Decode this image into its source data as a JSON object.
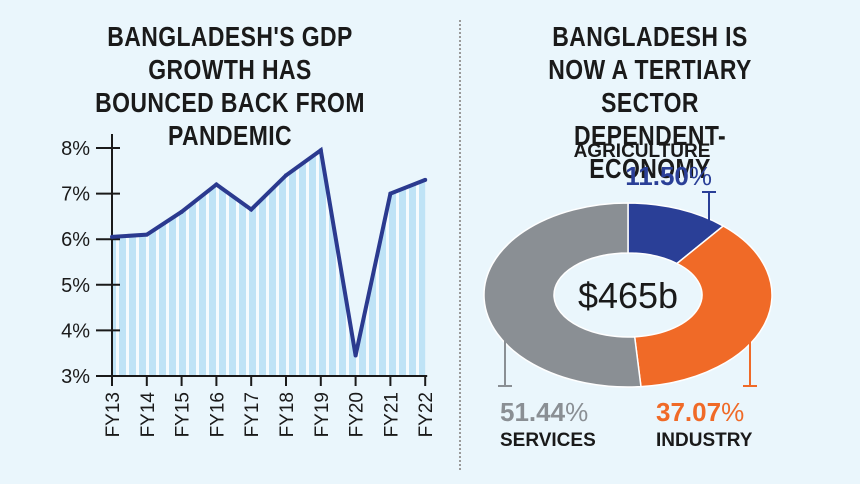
{
  "left_title": "BANGLADESH'S GDP GROWTH HAS BOUNCED BACK FROM PANDEMIC",
  "right_title": "BANGLADESH IS NOW A TERTIARY SECTOR DEPENDENT-ECONOMY",
  "chart_data": [
    {
      "type": "area",
      "title": "BANGLADESH'S GDP GROWTH HAS BOUNCED BACK FROM PANDEMIC",
      "categories": [
        "FY13",
        "FY14",
        "FY15",
        "FY16",
        "FY17",
        "FY18",
        "FY19",
        "FY20",
        "FY21",
        "FY22"
      ],
      "values": [
        6.05,
        6.1,
        6.6,
        7.2,
        6.65,
        7.4,
        7.95,
        3.45,
        7.0,
        7.3
      ],
      "yticks": [
        "8%",
        "7%",
        "6%",
        "5%",
        "4%",
        "3%"
      ],
      "ylim": [
        3,
        8
      ],
      "grid": false,
      "colors": {
        "line": "#2b3a8f",
        "fill": "#bfe3f6",
        "stripe": "#ffffff"
      }
    },
    {
      "type": "pie",
      "title": "BANGLADESH IS NOW A TERTIARY SECTOR DEPENDENT-ECONOMY",
      "center_label": "$465b",
      "slices": [
        {
          "label": "AGRICULTURE",
          "value": 11.5,
          "value_text": "11.50",
          "color": "#2a3f97"
        },
        {
          "label": "INDUSTRY",
          "value": 37.07,
          "value_text": "37.07",
          "color": "#f06a27"
        },
        {
          "label": "SERVICES",
          "value": 51.44,
          "value_text": "51.44",
          "color": "#8a8f94"
        }
      ],
      "percent_sign": "%"
    }
  ]
}
